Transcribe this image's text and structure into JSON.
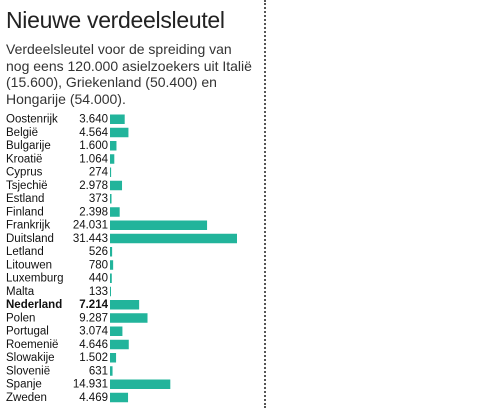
{
  "title": "Nieuwe verdeelsleutel",
  "subtitle": "Verdeelsleutel voor de spreiding van nog eens 120.000 asielzoekers uit Italië (15.600), Griekenland  (50.400) en Hongarije (54.000).",
  "accent_color": "#22b49b",
  "chart_data": {
    "type": "bar",
    "orientation": "horizontal",
    "title": "Nieuwe verdeelsleutel",
    "subtitle": "Verdeelsleutel voor de spreiding van nog eens 120.000 asielzoekers uit Italië (15.600), Griekenland  (50.400) en Hongarije (54.000).",
    "xlabel": "",
    "ylabel": "",
    "grid": false,
    "legend": "none",
    "highlight": "Nederland",
    "categories": [
      "Oostenrijk",
      "België",
      "Bulgarije",
      "Kroatië",
      "Cyprus",
      "Tsjechië",
      "Estland",
      "Finland",
      "Frankrijk",
      "Duitsland",
      "Letland",
      "Litouwen",
      "Luxemburg",
      "Malta",
      "Nederland",
      "Polen",
      "Portugal",
      "Roemenië",
      "Slowakije",
      "Slovenië",
      "Spanje",
      "Zweden"
    ],
    "labels": [
      "3.640",
      "4.564",
      "1.600",
      "1.064",
      "274",
      "2.978",
      "373",
      "2.398",
      "24.031",
      "31.443",
      "526",
      "780",
      "440",
      "133",
      "7.214",
      "9.287",
      "3.074",
      "4.646",
      "1.502",
      "631",
      "14.931",
      "4.469"
    ],
    "values": [
      3640,
      4564,
      1600,
      1064,
      274,
      2978,
      373,
      2398,
      24031,
      31443,
      526,
      780,
      440,
      133,
      7214,
      9287,
      3074,
      4646,
      1502,
      631,
      14931,
      4469
    ]
  }
}
